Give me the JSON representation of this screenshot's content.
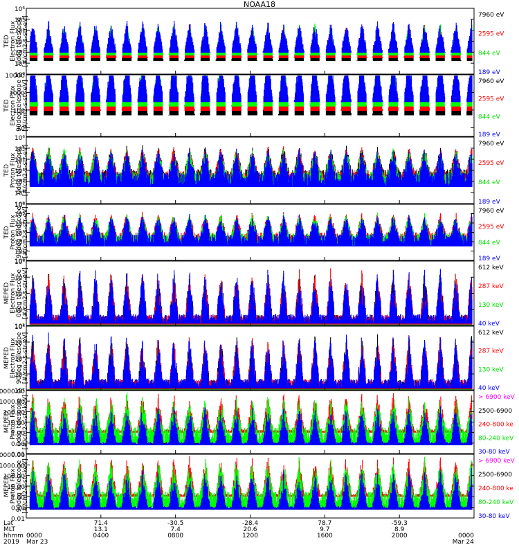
{
  "title": "NOAA18",
  "colors": {
    "black": "#000000",
    "red": "#ff0000",
    "green": "#00ff00",
    "blue": "#0000ff",
    "magenta": "#ff00ff"
  },
  "chart_data": [
    {
      "type": "line",
      "ylabel": [
        "TED",
        "Electron Flux",
        "0deg telescope",
        "[#/cm2-s-str-eV]"
      ],
      "ylog": [
        0,
        6
      ],
      "yticks": [
        "10⁰",
        "10¹",
        "10²",
        "10³",
        "10⁴",
        "10⁵",
        "10⁶"
      ],
      "ystyle": "pow",
      "series": [
        {
          "name": "7960 eV",
          "color": "#000000",
          "values": []
        },
        {
          "name": "2595 eV",
          "color": "#ff0000",
          "values": []
        },
        {
          "name": "844 eV",
          "color": "#00ff00",
          "values": []
        },
        {
          "name": "189 eV",
          "color": "#0000ff",
          "values": []
        }
      ],
      "legend": [
        {
          "text": "7960 eV",
          "color": "#000000"
        },
        {
          "text": "2595 eV",
          "color": "#ff0000"
        },
        {
          "text": "844 eV",
          "color": "#00ff00"
        },
        {
          "text": "189 eV",
          "color": "#0000ff"
        }
      ]
    },
    {
      "type": "line",
      "ylabel": [
        "TED",
        "Electron Flux",
        "90deg telescope",
        "[#/cm2-s-str-eV]"
      ],
      "ylog": [
        0.5,
        4
      ],
      "yticks": [
        "10",
        "100",
        "1000",
        "10000"
      ],
      "legend": [
        {
          "text": "7960 eV",
          "color": "#000000"
        },
        {
          "text": "2595 eV",
          "color": "#ff0000"
        },
        {
          "text": "844 eV",
          "color": "#00ff00"
        },
        {
          "text": "189 eV",
          "color": "#0000ff"
        }
      ]
    },
    {
      "type": "line",
      "ylabel": [
        "TED",
        "Proton Flux",
        "0deg telescope",
        "[#/cm2-s-str-eV]"
      ],
      "ylog": [
        0,
        6
      ],
      "yticks": [
        "10⁰",
        "10¹",
        "10²",
        "10³",
        "10⁴",
        "10⁵",
        "10⁶"
      ],
      "ystyle": "pow",
      "legend": [
        {
          "text": "7960 eV",
          "color": "#000000"
        },
        {
          "text": "2595 eV",
          "color": "#ff0000"
        },
        {
          "text": "844 eV",
          "color": "#00ff00"
        },
        {
          "text": "189 eV",
          "color": "#0000ff"
        }
      ]
    },
    {
      "type": "line",
      "ylabel": [
        "TED",
        "Proton Flux",
        "90deg telescope",
        "[#/cm2-s-str-eV]"
      ],
      "ylog": [
        0,
        6
      ],
      "yticks": [
        "10⁰",
        "10¹",
        "10²",
        "10³",
        "10⁴",
        "10⁵",
        "10⁶"
      ],
      "ystyle": "pow",
      "legend": [
        {
          "text": "7960 eV",
          "color": "#000000"
        },
        {
          "text": "2595 eV",
          "color": "#ff0000"
        },
        {
          "text": "844 eV",
          "color": "#00ff00"
        },
        {
          "text": "189 eV",
          "color": "#0000ff"
        }
      ]
    },
    {
      "type": "line",
      "ylabel": [
        "MEPED",
        "Electron Flux",
        "0deg telescope",
        "[#/cm2-s-str-eV]"
      ],
      "ylog": [
        2,
        6
      ],
      "yticks": [
        "10²",
        "10³",
        "10⁴",
        "10⁵",
        "10⁶"
      ],
      "ystyle": "pow",
      "legend": [
        {
          "text": "612 keV",
          "color": "#000000"
        },
        {
          "text": "287 keV",
          "color": "#ff0000"
        },
        {
          "text": "130 keV",
          "color": "#00ff00"
        },
        {
          "text": "40 keV",
          "color": "#0000ff"
        }
      ]
    },
    {
      "type": "line",
      "ylabel": [
        "MEPED",
        "Electron Flux",
        "90deg telescope",
        "[#/cm2-s-str-eV]"
      ],
      "ylog": [
        2,
        6
      ],
      "yticks": [
        "10²",
        "10³",
        "10⁴",
        "10⁵",
        "10⁶"
      ],
      "ystyle": "pow",
      "legend": [
        {
          "text": "612 keV",
          "color": "#000000"
        },
        {
          "text": "287 keV",
          "color": "#ff0000"
        },
        {
          "text": "130 keV",
          "color": "#00ff00"
        },
        {
          "text": "40 keV",
          "color": "#0000ff"
        }
      ]
    },
    {
      "type": "line",
      "ylabel": [
        "MEPED",
        "Proton Flux",
        "0deg telescope",
        "[#/cm2-s-str-keV]"
      ],
      "ylog": [
        -2,
        4
      ],
      "yticks": [
        "0.01",
        "0.10",
        "1.00",
        "10.00",
        "100.00",
        "1000.00",
        "10000.00"
      ],
      "legend": [
        {
          "text": "> 6900 keV",
          "color": "#ff00ff"
        },
        {
          "text": "2500-6900",
          "color": "#000000"
        },
        {
          "text": "240-800 ke",
          "color": "#ff0000"
        },
        {
          "text": "80-240 keV",
          "color": "#00ff00"
        },
        {
          "text": "30-80 keV",
          "color": "#0000ff"
        }
      ]
    },
    {
      "type": "line",
      "ylabel": [
        "MEPED",
        "Proton Flux",
        "90deg telescope",
        "[#/cm2-s-str-keV]"
      ],
      "ylog": [
        -2,
        4
      ],
      "yticks": [
        "0.01",
        "0.10",
        "1.00",
        "10.00",
        "100.00",
        "1000.00",
        "10000.00"
      ],
      "legend": [
        {
          "text": "> 6900 keV",
          "color": "#ff00ff"
        },
        {
          "text": "2500-6900",
          "color": "#000000"
        },
        {
          "text": "240-800 ke",
          "color": "#ff0000"
        },
        {
          "text": "80-240 keV",
          "color": "#00ff00"
        },
        {
          "text": "30-80 keV",
          "color": "#0000ff"
        }
      ]
    }
  ],
  "xaxis": {
    "row_labels": [
      "Lat",
      "MLT",
      "hhmm",
      "2019"
    ],
    "ticks": [
      {
        "lat": "",
        "mlt": "",
        "hhmm": "0000",
        "date": "Mar 23",
        "hour": 0
      },
      {
        "lat": "71.4",
        "mlt": "13.1",
        "hhmm": "0400",
        "date": "",
        "hour": 4
      },
      {
        "lat": "-30.5",
        "mlt": "7.4",
        "hhmm": "0800",
        "date": "",
        "hour": 8
      },
      {
        "lat": "-28.4",
        "mlt": "20.6",
        "hhmm": "1200",
        "date": "",
        "hour": 12
      },
      {
        "lat": "78.7",
        "mlt": "9.7",
        "hhmm": "1600",
        "date": "",
        "hour": 16
      },
      {
        "lat": "-59.3",
        "mlt": "8.9",
        "hhmm": "2000",
        "date": "",
        "hour": 20
      },
      {
        "lat": "",
        "mlt": "",
        "hhmm": "0000",
        "date": "Mar 24",
        "hour": 24
      }
    ],
    "range_hours": [
      0,
      24
    ]
  }
}
